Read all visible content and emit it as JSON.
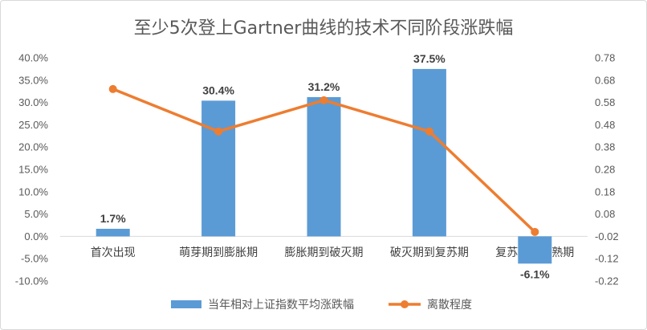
{
  "chart_data": {
    "type": "bar",
    "title": "至少5次登上Gartner曲线的技术不同阶段涨跌幅",
    "categories": [
      "首次出现",
      "萌芽期到膨胀期",
      "膨胀期到破灭期",
      "破灭期到复苏期",
      "复苏期到成熟期"
    ],
    "series": [
      {
        "name": "当年相对上证指数平均涨跌幅",
        "type": "bar",
        "axis": "left",
        "values": [
          0.017,
          0.304,
          0.312,
          0.375,
          -0.061
        ],
        "data_labels": [
          "1.7%",
          "30.4%",
          "31.2%",
          "37.5%",
          "-6.1%"
        ],
        "color": "#5b9bd5"
      },
      {
        "name": "离散程度",
        "type": "line",
        "axis": "right",
        "values": [
          0.64,
          0.45,
          0.59,
          0.45,
          0.0
        ],
        "color": "#ed7d31"
      }
    ],
    "y_left": {
      "range": [
        -0.1,
        0.4
      ],
      "ticks": [
        0.4,
        0.35,
        0.3,
        0.25,
        0.2,
        0.15,
        0.1,
        0.05,
        0.0,
        -0.05,
        -0.1
      ],
      "tick_labels": [
        "40.0%",
        "35.0%",
        "30.0%",
        "25.0%",
        "20.0%",
        "15.0%",
        "10.0%",
        "5.0%",
        "0.0%",
        "-5.0%",
        "-10.0%"
      ]
    },
    "y_right": {
      "range": [
        -0.22,
        0.78
      ],
      "ticks": [
        0.78,
        0.68,
        0.58,
        0.48,
        0.38,
        0.28,
        0.18,
        0.08,
        -0.02,
        -0.12,
        -0.22
      ],
      "tick_labels": [
        "0.78",
        "0.68",
        "0.58",
        "0.48",
        "0.38",
        "0.28",
        "0.18",
        "0.08",
        "-0.02",
        "-0.12",
        "-0.22"
      ]
    },
    "legend_position": "bottom",
    "grid": false
  }
}
